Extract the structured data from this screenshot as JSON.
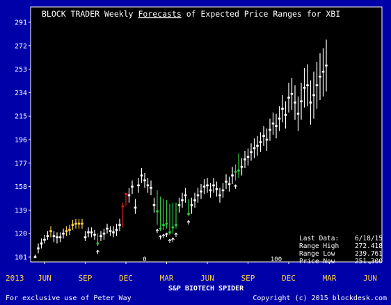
{
  "chart_data": {
    "type": "range",
    "title": {
      "prefix": "BLOCK TRADER Weekly ",
      "underlined": "Forecasts",
      "suffix": " of Expected Price Ranges for XBI"
    },
    "xlabel": "S&P BIOTECH SPIDER",
    "ylim": [
      95,
      295
    ],
    "y_ticks": [
      101,
      120,
      139,
      158,
      177,
      196,
      215,
      234,
      253,
      272,
      291
    ],
    "x_month_labels": [
      {
        "label": "2013",
        "week": -11,
        "color": "#ffd24a"
      },
      {
        "label": "JUN",
        "week": 0,
        "color": "#ffd24a"
      },
      {
        "label": "SEP",
        "week": 13,
        "color": "#ffd24a"
      },
      {
        "label": "DEC",
        "week": 26,
        "color": "#ffd24a"
      },
      {
        "label": "MAR",
        "week": 39,
        "color": "#ffd24a"
      },
      {
        "label": "JUN",
        "week": 52,
        "color": "#ffd24a"
      },
      {
        "label": "SEP",
        "week": 65,
        "color": "#ffd24a"
      },
      {
        "label": "DEC",
        "week": 78,
        "color": "#ffd24a"
      },
      {
        "label": "MAR",
        "week": 91,
        "color": "#ffd24a"
      },
      {
        "label": "JUN",
        "week": 104,
        "color": "#ffd24a"
      }
    ],
    "inner_axis_labels": [
      {
        "label": "0",
        "week": 32
      },
      {
        "label": "100",
        "week": 74
      }
    ],
    "bars": [
      {
        "week": -3,
        "low": 101,
        "high": 103,
        "price": 101,
        "color": "#ffffff"
      },
      {
        "week": -2,
        "low": 104,
        "high": 112,
        "price": 108,
        "color": "#ffffff"
      },
      {
        "week": -1,
        "low": 108,
        "high": 116,
        "price": 112,
        "color": "#ffffff"
      },
      {
        "week": 0,
        "low": 112,
        "high": 119,
        "price": 115,
        "color": "#ffffff"
      },
      {
        "week": 1,
        "low": 115,
        "high": 122,
        "price": 118,
        "color": "#ffffff"
      },
      {
        "week": 2,
        "low": 117,
        "high": 126,
        "price": 122,
        "color": "#ffd24a"
      },
      {
        "week": 3,
        "low": 113,
        "high": 122,
        "price": 118,
        "color": "#ffffff"
      },
      {
        "week": 4,
        "low": 112,
        "high": 121,
        "price": 117,
        "color": "#ffffff"
      },
      {
        "week": 5,
        "low": 113,
        "high": 121,
        "price": 117,
        "color": "#ffffff"
      },
      {
        "week": 6,
        "low": 116,
        "high": 124,
        "price": 120,
        "color": "#ffffff"
      },
      {
        "week": 7,
        "low": 118,
        "high": 126,
        "price": 122,
        "color": "#ffd24a"
      },
      {
        "week": 8,
        "low": 119,
        "high": 127,
        "price": 123,
        "color": "#ffd24a"
      },
      {
        "week": 9,
        "low": 123,
        "high": 131,
        "price": 127,
        "color": "#ffd24a"
      },
      {
        "week": 10,
        "low": 124,
        "high": 132,
        "price": 128,
        "color": "#ffd24a"
      },
      {
        "week": 11,
        "low": 124,
        "high": 132,
        "price": 128,
        "color": "#ffd24a"
      },
      {
        "week": 12,
        "low": 124,
        "high": 132,
        "price": 128,
        "color": "#ffd24a"
      },
      {
        "week": 13,
        "low": 114,
        "high": 122,
        "price": 117,
        "color": "#ffffff"
      },
      {
        "week": 14,
        "low": 117,
        "high": 125,
        "price": 121,
        "color": "#ffffff"
      },
      {
        "week": 15,
        "low": 117,
        "high": 125,
        "price": 121,
        "color": "#ffffff"
      },
      {
        "week": 16,
        "low": 115,
        "high": 123,
        "price": 119,
        "color": "#ffffff"
      },
      {
        "week": 17,
        "low": 110,
        "high": 120,
        "price": 112,
        "color": "#2ecc40",
        "arrow": true
      },
      {
        "week": 18,
        "low": 114,
        "high": 122,
        "price": 118,
        "color": "#ffffff"
      },
      {
        "week": 19,
        "low": 115,
        "high": 124,
        "price": 120,
        "color": "#ffffff"
      },
      {
        "week": 20,
        "low": 120,
        "high": 128,
        "price": 124,
        "color": "#ffffff"
      },
      {
        "week": 21,
        "low": 118,
        "high": 126,
        "price": 122,
        "color": "#ffffff"
      },
      {
        "week": 22,
        "low": 117,
        "high": 126,
        "price": 121,
        "color": "#ffffff"
      },
      {
        "week": 23,
        "low": 118,
        "high": 128,
        "price": 123,
        "color": "#ffffff"
      },
      {
        "week": 24,
        "low": 122,
        "high": 132,
        "price": 127,
        "color": "#ffffff"
      },
      {
        "week": 25,
        "low": 125,
        "high": 145,
        "price": 142,
        "color": "#cc2020"
      },
      {
        "week": 26,
        "low": 142,
        "high": 152,
        "price": 152,
        "color": "#cc2020"
      },
      {
        "week": 27,
        "low": 145,
        "high": 157,
        "price": 151,
        "color": "#ffffff"
      },
      {
        "week": 28,
        "low": 152,
        "high": 163,
        "price": 158,
        "color": "#ffffff"
      },
      {
        "week": 29,
        "low": 136,
        "high": 148,
        "price": 141,
        "color": "#ffffff"
      },
      {
        "week": 30,
        "low": 153,
        "high": 165,
        "price": 159,
        "color": "#ffffff"
      },
      {
        "week": 31,
        "low": 161,
        "high": 173,
        "price": 167,
        "color": "#ffffff"
      },
      {
        "week": 32,
        "low": 157,
        "high": 169,
        "price": 163,
        "color": "#ffffff"
      },
      {
        "week": 33,
        "low": 153,
        "high": 165,
        "price": 159,
        "color": "#ffffff"
      },
      {
        "week": 34,
        "low": 151,
        "high": 163,
        "price": 157,
        "color": "#ffffff"
      },
      {
        "week": 35,
        "low": 137,
        "high": 149,
        "price": 143,
        "color": "#ffffff"
      },
      {
        "week": 36,
        "low": 127,
        "high": 155,
        "price": 138,
        "color": "#2ecc40",
        "arrow": true
      },
      {
        "week": 37,
        "low": 122,
        "high": 150,
        "price": 124,
        "color": "#2ecc40",
        "arrow": true
      },
      {
        "week": 38,
        "low": 123,
        "high": 148,
        "price": 127,
        "color": "#2ecc40",
        "arrow": true
      },
      {
        "week": 39,
        "low": 124,
        "high": 147,
        "price": 128,
        "color": "#2ecc40",
        "arrow": true
      },
      {
        "week": 40,
        "low": 119,
        "high": 144,
        "price": 121,
        "color": "#2ecc40",
        "arrow": true
      },
      {
        "week": 41,
        "low": 120,
        "high": 145,
        "price": 125,
        "color": "#2ecc40",
        "arrow": true
      },
      {
        "week": 42,
        "low": 124,
        "high": 145,
        "price": 127,
        "color": "#2ecc40",
        "arrow": true
      },
      {
        "week": 43,
        "low": 137,
        "high": 149,
        "price": 143,
        "color": "#ffffff"
      },
      {
        "week": 44,
        "low": 141,
        "high": 153,
        "price": 147,
        "color": "#ffffff"
      },
      {
        "week": 45,
        "low": 145,
        "high": 157,
        "price": 151,
        "color": "#ffffff"
      },
      {
        "week": 46,
        "low": 134,
        "high": 148,
        "price": 136,
        "color": "#2ecc40",
        "arrow": true
      },
      {
        "week": 47,
        "low": 136,
        "high": 149,
        "price": 143,
        "color": "#ffffff"
      },
      {
        "week": 48,
        "low": 141,
        "high": 153,
        "price": 147,
        "color": "#ffffff"
      },
      {
        "week": 49,
        "low": 145,
        "high": 157,
        "price": 151,
        "color": "#ffffff"
      },
      {
        "week": 50,
        "low": 148,
        "high": 160,
        "price": 154,
        "color": "#ffffff"
      },
      {
        "week": 51,
        "low": 152,
        "high": 164,
        "price": 158,
        "color": "#ffffff"
      },
      {
        "week": 52,
        "low": 153,
        "high": 165,
        "price": 159,
        "color": "#ffffff"
      },
      {
        "week": 53,
        "low": 149,
        "high": 161,
        "price": 155,
        "color": "#ffffff"
      },
      {
        "week": 54,
        "low": 153,
        "high": 165,
        "price": 159,
        "color": "#ffffff"
      },
      {
        "week": 55,
        "low": 150,
        "high": 162,
        "price": 156,
        "color": "#ffffff"
      },
      {
        "week": 56,
        "low": 145,
        "high": 157,
        "price": 151,
        "color": "#ffffff"
      },
      {
        "week": 57,
        "low": 149,
        "high": 161,
        "price": 155,
        "color": "#ffffff"
      },
      {
        "week": 58,
        "low": 156,
        "high": 168,
        "price": 162,
        "color": "#ffffff"
      },
      {
        "week": 59,
        "low": 154,
        "high": 166,
        "price": 160,
        "color": "#ffffff"
      },
      {
        "week": 60,
        "low": 160,
        "high": 174,
        "price": 167,
        "color": "#ffffff"
      },
      {
        "week": 61,
        "low": 163,
        "high": 176,
        "price": 170,
        "color": "#2ecc40",
        "arrow": true
      },
      {
        "week": 62,
        "low": 165,
        "high": 185,
        "price": 171,
        "color": "#2ecc40"
      },
      {
        "week": 63,
        "low": 167,
        "high": 181,
        "price": 174,
        "color": "#ffffff"
      },
      {
        "week": 64,
        "low": 173,
        "high": 187,
        "price": 180,
        "color": "#ffffff"
      },
      {
        "week": 65,
        "low": 175,
        "high": 189,
        "price": 182,
        "color": "#ffffff"
      },
      {
        "week": 66,
        "low": 179,
        "high": 193,
        "price": 186,
        "color": "#ffffff"
      },
      {
        "week": 67,
        "low": 181,
        "high": 197,
        "price": 189,
        "color": "#ffffff"
      },
      {
        "week": 68,
        "low": 183,
        "high": 199,
        "price": 191,
        "color": "#ffffff"
      },
      {
        "week": 69,
        "low": 186,
        "high": 202,
        "price": 194,
        "color": "#ffffff"
      },
      {
        "week": 70,
        "low": 191,
        "high": 207,
        "price": 199,
        "color": "#ffffff"
      },
      {
        "week": 71,
        "low": 187,
        "high": 205,
        "price": 196,
        "color": "#ffffff"
      },
      {
        "week": 72,
        "low": 195,
        "high": 213,
        "price": 204,
        "color": "#ffffff"
      },
      {
        "week": 73,
        "low": 200,
        "high": 218,
        "price": 209,
        "color": "#ffffff"
      },
      {
        "week": 74,
        "low": 197,
        "high": 217,
        "price": 207,
        "color": "#ffffff"
      },
      {
        "week": 75,
        "low": 203,
        "high": 223,
        "price": 213,
        "color": "#ffffff"
      },
      {
        "week": 76,
        "low": 210,
        "high": 232,
        "price": 221,
        "color": "#ffffff"
      },
      {
        "week": 77,
        "low": 205,
        "high": 227,
        "price": 216,
        "color": "#ffffff"
      },
      {
        "week": 78,
        "low": 218,
        "high": 242,
        "price": 230,
        "color": "#ffffff"
      },
      {
        "week": 79,
        "low": 220,
        "high": 246,
        "price": 233,
        "color": "#ffffff"
      },
      {
        "week": 80,
        "low": 212,
        "high": 240,
        "price": 226,
        "color": "#ffffff"
      },
      {
        "week": 81,
        "low": 203,
        "high": 231,
        "price": 217,
        "color": "#ffffff"
      },
      {
        "week": 82,
        "low": 212,
        "high": 242,
        "price": 227,
        "color": "#ffffff"
      },
      {
        "week": 83,
        "low": 222,
        "high": 254,
        "price": 238,
        "color": "#ffffff"
      },
      {
        "week": 84,
        "low": 223,
        "high": 257,
        "price": 240,
        "color": "#ffffff"
      },
      {
        "week": 85,
        "low": 208,
        "high": 244,
        "price": 226,
        "color": "#ffffff"
      },
      {
        "week": 86,
        "low": 213,
        "high": 251,
        "price": 232,
        "color": "#ffffff"
      },
      {
        "week": 87,
        "low": 221,
        "high": 259,
        "price": 240,
        "color": "#ffffff"
      },
      {
        "week": 88,
        "low": 228,
        "high": 266,
        "price": 247,
        "color": "#ffffff"
      },
      {
        "week": 89,
        "low": 231,
        "high": 270,
        "price": 251,
        "color": "#ffffff"
      },
      {
        "week": 90,
        "low": 235,
        "high": 277,
        "price": 256,
        "color": "#ffffff"
      }
    ],
    "last_data_date": "6/18/15",
    "range_high": "272.418",
    "range_low": "239.761",
    "price_now": "251.300"
  },
  "legend": {
    "last_data_label": "Last Data:",
    "last_data_value": "6/18/15",
    "range_high_label": "Range High",
    "range_high_value": "272.418",
    "range_low_label": "Range Low",
    "range_low_value": "239.761",
    "price_now_label": "Price Now",
    "price_now_value": "251.300"
  },
  "footer": {
    "left": "For exclusive use of Peter Way",
    "right": "Copyright (c) 2015 blockdesk.com"
  },
  "colors": {
    "frame": "#0000a8",
    "plot_background": "#000000",
    "axis_text": "#ffffff",
    "month_labels": "#ffd24a"
  }
}
